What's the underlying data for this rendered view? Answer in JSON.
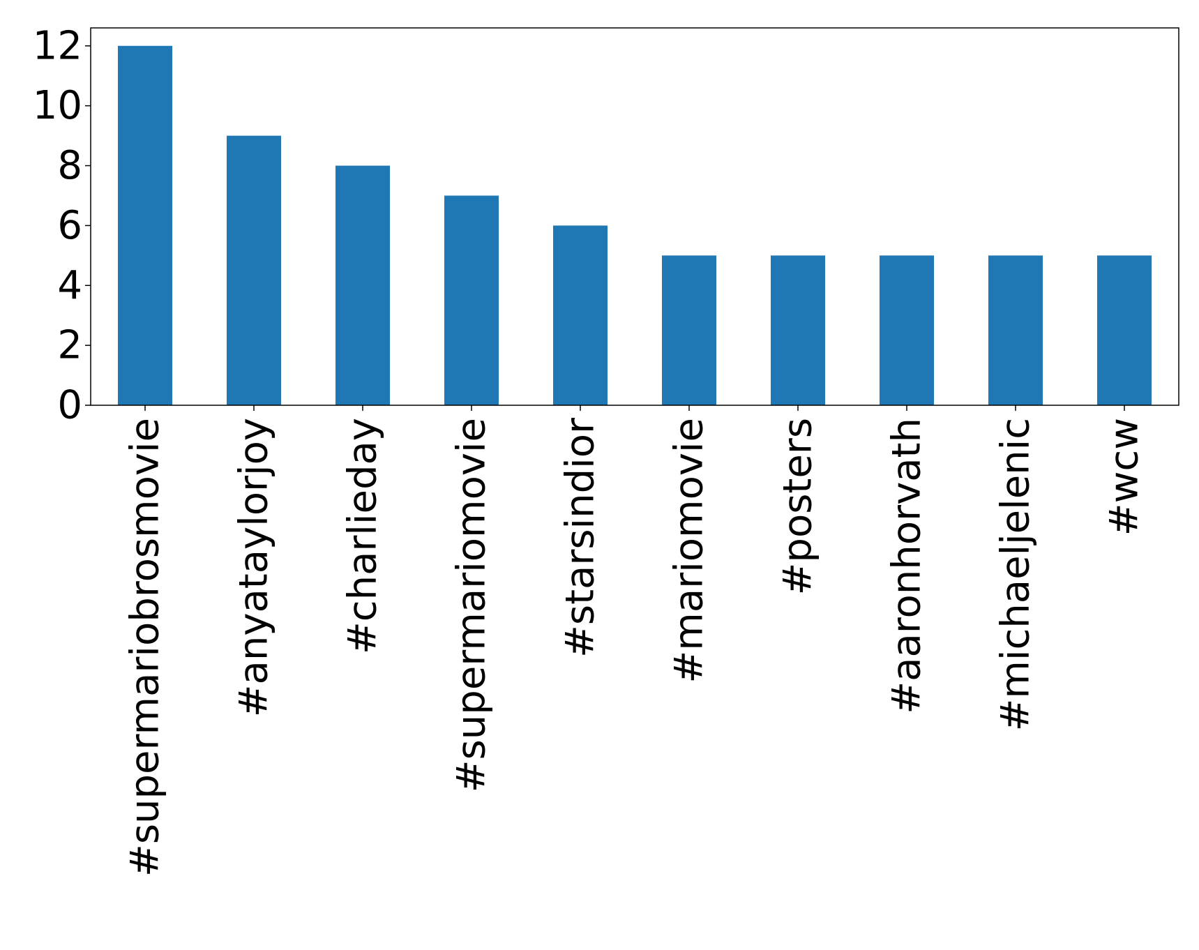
{
  "chart_data": {
    "type": "bar",
    "categories": [
      "#supermariobrosmovie",
      "#anyataylorjoy",
      "#charlieday",
      "#supermariomovie",
      "#starsindior",
      "#mariomovie",
      "#posters",
      "#aaronhorvath",
      "#michaeljelenic",
      "#wcw"
    ],
    "values": [
      12,
      9,
      8,
      7,
      6,
      5,
      5,
      5,
      5,
      5
    ],
    "ylim": [
      0,
      12.6
    ],
    "yticks": [
      "0",
      "2",
      "4",
      "6",
      "8",
      "10",
      "12"
    ],
    "bar_color": "#1f77b4",
    "grid": false,
    "legend": false
  }
}
